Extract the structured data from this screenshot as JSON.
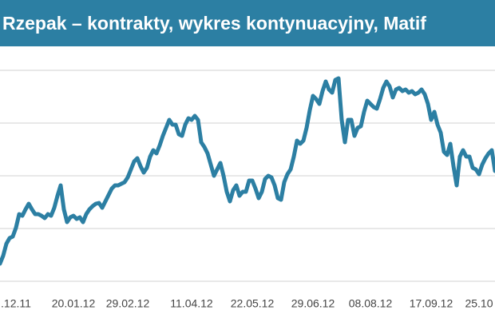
{
  "chart_data": {
    "type": "line",
    "title": "Rzepak – kontrakty, wykres kontynuacyjny, Matif",
    "categories": [
      null,
      null,
      null,
      null,
      null,
      ".12.11",
      null,
      null,
      null,
      null,
      null,
      null,
      null,
      null,
      null,
      null,
      null,
      null,
      null,
      null,
      null,
      null,
      null,
      "20.01.12",
      null,
      null,
      null,
      null,
      null,
      null,
      null,
      null,
      null,
      null,
      null,
      null,
      null,
      null,
      null,
      null,
      "29.02.12",
      null,
      null,
      null,
      null,
      null,
      null,
      null,
      null,
      null,
      null,
      null,
      null,
      null,
      null,
      null,
      null,
      null,
      null,
      null,
      "11.04.12",
      null,
      null,
      null,
      null,
      null,
      null,
      null,
      null,
      null,
      null,
      null,
      null,
      null,
      null,
      null,
      null,
      null,
      null,
      "22.05.12",
      null,
      null,
      null,
      null,
      null,
      null,
      null,
      null,
      null,
      null,
      null,
      null,
      null,
      null,
      null,
      null,
      null,
      null,
      "29.06.12",
      null,
      null,
      null,
      null,
      null,
      null,
      null,
      null,
      null,
      null,
      null,
      null,
      null,
      null,
      null,
      null,
      null,
      "08.08.12",
      null,
      null,
      null,
      null,
      null,
      null,
      null,
      null,
      null,
      null,
      null,
      null,
      null,
      null,
      null,
      null,
      null,
      null,
      "17.09.12",
      null,
      null,
      null,
      null,
      null,
      null,
      null,
      null,
      null,
      null,
      null,
      null,
      null,
      null,
      "25.10",
      null,
      null,
      null,
      null,
      null
    ],
    "values": [
      22,
      32,
      47,
      54,
      56,
      67,
      84,
      82,
      90,
      97,
      90,
      84,
      84,
      82,
      79,
      84,
      82,
      92,
      107,
      120,
      90,
      74,
      80,
      82,
      78,
      80,
      74,
      84,
      90,
      94,
      97,
      98,
      92,
      100,
      108,
      116,
      120,
      120,
      122,
      124,
      130,
      140,
      150,
      154,
      144,
      136,
      142,
      156,
      164,
      160,
      170,
      182,
      192,
      202,
      196,
      196,
      184,
      182,
      196,
      204,
      202,
      207,
      202,
      174,
      168,
      160,
      146,
      132,
      140,
      148,
      132,
      112,
      100,
      114,
      120,
      107,
      112,
      112,
      126,
      126,
      116,
      104,
      112,
      128,
      132,
      130,
      120,
      104,
      102,
      124,
      134,
      140,
      156,
      176,
      172,
      176,
      192,
      214,
      232,
      228,
      222,
      238,
      250,
      240,
      236,
      252,
      254,
      202,
      174,
      202,
      202,
      182,
      192,
      194,
      212,
      226,
      222,
      218,
      216,
      228,
      242,
      250,
      244,
      230,
      240,
      242,
      238,
      240,
      236,
      238,
      234,
      236,
      240,
      234,
      222,
      202,
      212,
      196,
      186,
      162,
      158,
      172,
      144,
      120,
      156,
      164,
      156,
      156,
      142,
      140,
      134,
      146,
      154,
      160,
      164,
      138
    ],
    "color": "#2c7fa3",
    "ylim": [
      0,
      290
    ],
    "yticks": [
      0,
      66,
      132,
      198,
      264
    ],
    "grid": true
  }
}
